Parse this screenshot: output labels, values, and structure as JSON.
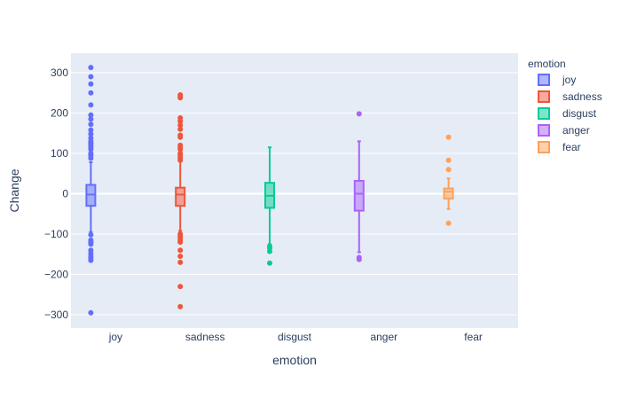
{
  "chart_data": {
    "type": "box",
    "title": "",
    "xlabel": "emotion",
    "ylabel": "Change",
    "ylim": [
      -330,
      345
    ],
    "yticks": [
      300,
      200,
      100,
      0,
      -100,
      -200,
      -300
    ],
    "ytick_labels": [
      "300",
      "200",
      "100",
      "0",
      "−100",
      "−200",
      "−300"
    ],
    "grid": true,
    "legend": {
      "title": "emotion",
      "position": "top-right"
    },
    "categories": [
      "joy",
      "sadness",
      "disgust",
      "anger",
      "fear"
    ],
    "series": [
      {
        "name": "joy",
        "color": "#636efa",
        "lower_fence": -95,
        "q1": -30,
        "median": -2,
        "q3": 22,
        "upper_fence": 78,
        "outliers": [
          313,
          290,
          272,
          250,
          220,
          195,
          185,
          172,
          158,
          148,
          138,
          130,
          125,
          120,
          115,
          110,
          100,
          95,
          88,
          -102,
          -115,
          -120,
          -125,
          -140,
          -148,
          -155,
          -160,
          -165,
          -295
        ]
      },
      {
        "name": "sadness",
        "color": "#ef553b",
        "lower_fence": -92,
        "q1": -30,
        "median": -2,
        "q3": 15,
        "upper_fence": 80,
        "outliers": [
          245,
          240,
          238,
          188,
          180,
          170,
          160,
          145,
          140,
          120,
          115,
          110,
          100,
          97,
          92,
          88,
          83,
          -100,
          -105,
          -110,
          -115,
          -120,
          -140,
          -155,
          -170,
          -230,
          -280
        ]
      },
      {
        "name": "disgust",
        "color": "#00cc96",
        "lower_fence": -125,
        "q1": -35,
        "median": -5,
        "q3": 27,
        "upper_fence": 115,
        "outliers": [
          -130,
          -135,
          -143,
          -172
        ]
      },
      {
        "name": "anger",
        "color": "#ab63fa",
        "lower_fence": -145,
        "q1": -42,
        "median": 0,
        "q3": 32,
        "upper_fence": 130,
        "outliers": [
          198,
          -158,
          -163
        ]
      },
      {
        "name": "fear",
        "color": "#ffa15a",
        "lower_fence": -38,
        "q1": -12,
        "median": 5,
        "q3": 13,
        "upper_fence": 38,
        "outliers": [
          140,
          83,
          60,
          -73
        ]
      }
    ]
  }
}
